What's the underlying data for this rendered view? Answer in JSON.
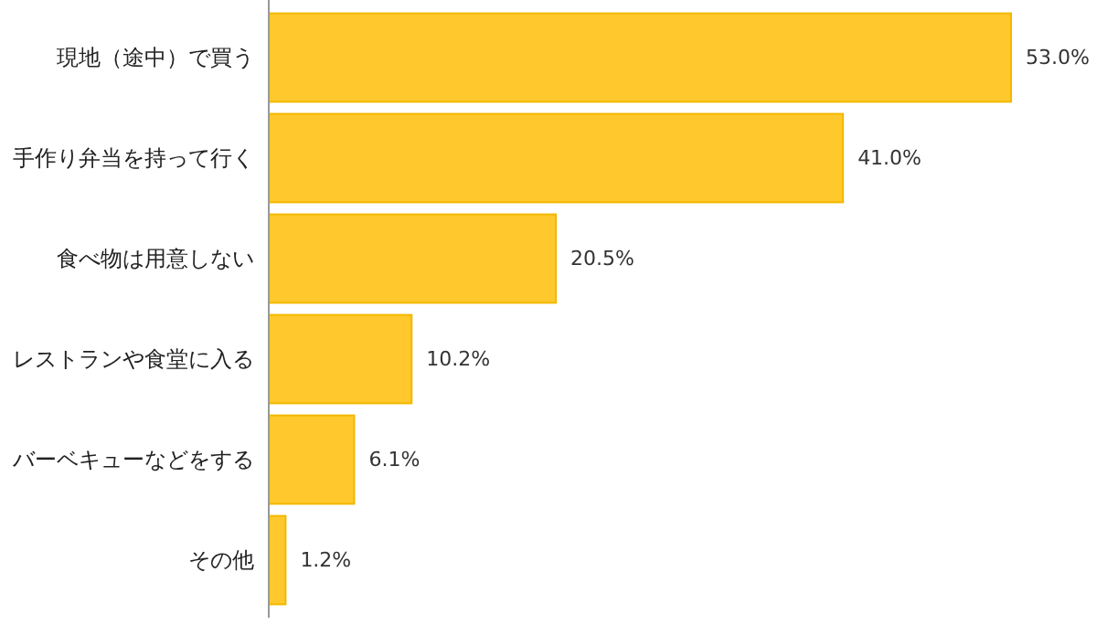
{
  "chart_data": {
    "type": "bar",
    "orientation": "horizontal",
    "categories": [
      "現地（途中）で買う",
      "手作り弁当を持って行く",
      "食べ物は用意しない",
      "レストランや食堂に入る",
      "バーベキューなどをする",
      "その他"
    ],
    "values": [
      53.0,
      41.0,
      20.5,
      10.2,
      6.1,
      1.2
    ],
    "value_labels": [
      "53.0%",
      "41.0%",
      "20.5%",
      "10.2%",
      "6.1%",
      "1.2%"
    ],
    "color": "#ffc82c"
  }
}
